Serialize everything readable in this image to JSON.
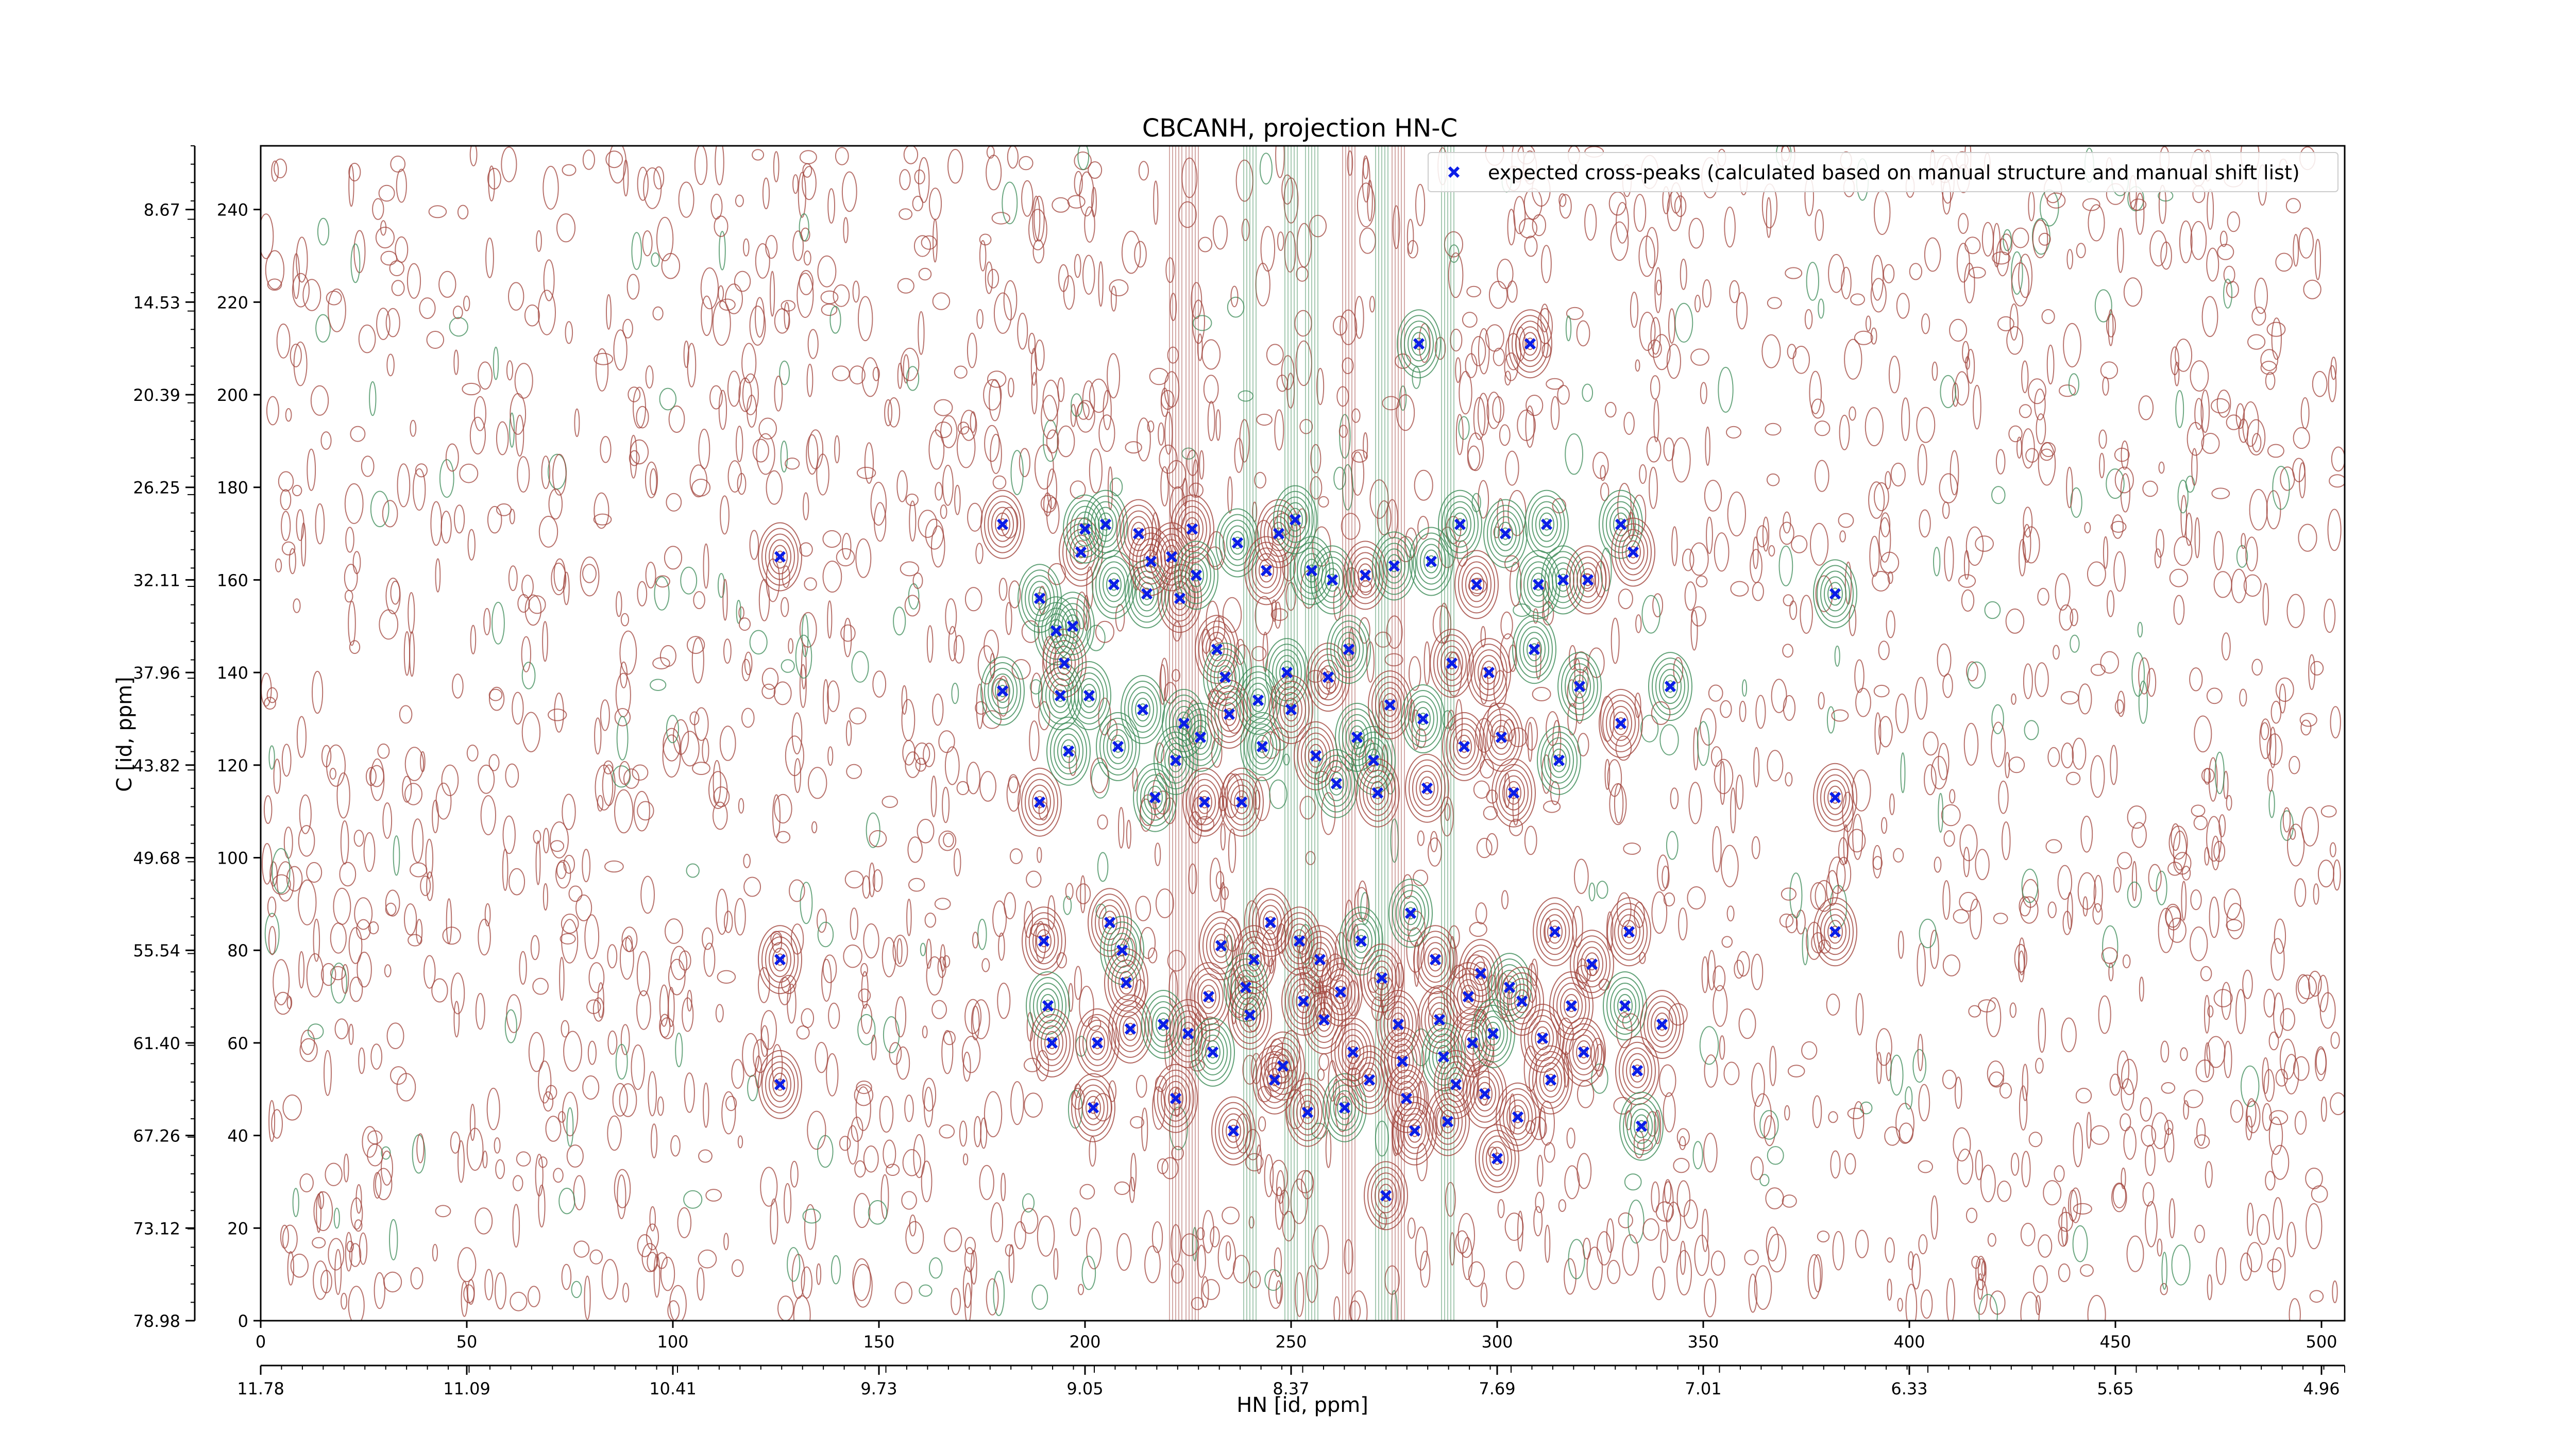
{
  "chart_data": {
    "type": "scatter",
    "title": "CBCANH, projection HN-C",
    "xlabel": "HN [id, ppm]",
    "ylabel": "C [id, ppm]",
    "xlim": [
      0,
      512
    ],
    "ylim": [
      0,
      255
    ],
    "x_ticks": [
      "0",
      "50",
      "100",
      "150",
      "200",
      "250",
      "300",
      "350",
      "400",
      "450",
      "500"
    ],
    "y_ticks": [
      "0",
      "20",
      "40",
      "60",
      "80",
      "100",
      "120",
      "140",
      "160",
      "180",
      "200",
      "220",
      "240"
    ],
    "secondary_x_ticks": [
      "11.78",
      "11.09",
      "10.41",
      "9.73",
      "9.05",
      "8.37",
      "7.69",
      "7.01",
      "6.33",
      "5.65",
      "4.96"
    ],
    "secondary_y_ticks": [
      "78.98",
      "73.12",
      "67.26",
      "61.40",
      "55.54",
      "49.68",
      "43.82",
      "37.96",
      "32.11",
      "26.25",
      "20.39",
      "14.53",
      "8.67"
    ],
    "legend_position": "top-right",
    "grid": false,
    "colors": {
      "positive_contour": "#a0433b",
      "negative_contour": "#3a8a55",
      "marker": "#0a1de8"
    },
    "series": [
      {
        "name": "expected cross-peaks (calculated based on manual structure and manual shift list)",
        "marker": "x",
        "points": [
          [
            126,
            165
          ],
          [
            126,
            78
          ],
          [
            126,
            51
          ],
          [
            180,
            172
          ],
          [
            180,
            136
          ],
          [
            189,
            156
          ],
          [
            189,
            112
          ],
          [
            190,
            82
          ],
          [
            191,
            68
          ],
          [
            192,
            60
          ],
          [
            193,
            149
          ],
          [
            194,
            135
          ],
          [
            195,
            142
          ],
          [
            196,
            123
          ],
          [
            197,
            150
          ],
          [
            199,
            166
          ],
          [
            200,
            171
          ],
          [
            201,
            135
          ],
          [
            202,
            46
          ],
          [
            203,
            60
          ],
          [
            205,
            172
          ],
          [
            206,
            86
          ],
          [
            207,
            159
          ],
          [
            208,
            124
          ],
          [
            209,
            80
          ],
          [
            210,
            73
          ],
          [
            211,
            63
          ],
          [
            213,
            170
          ],
          [
            214,
            132
          ],
          [
            215,
            157
          ],
          [
            216,
            164
          ],
          [
            217,
            113
          ],
          [
            219,
            64
          ],
          [
            221,
            165
          ],
          [
            222,
            48
          ],
          [
            222,
            121
          ],
          [
            223,
            156
          ],
          [
            224,
            129
          ],
          [
            225,
            62
          ],
          [
            226,
            171
          ],
          [
            227,
            161
          ],
          [
            228,
            126
          ],
          [
            229,
            112
          ],
          [
            230,
            70
          ],
          [
            231,
            58
          ],
          [
            232,
            145
          ],
          [
            233,
            81
          ],
          [
            234,
            139
          ],
          [
            235,
            131
          ],
          [
            236,
            41
          ],
          [
            237,
            168
          ],
          [
            238,
            112
          ],
          [
            239,
            72
          ],
          [
            240,
            66
          ],
          [
            241,
            78
          ],
          [
            242,
            134
          ],
          [
            243,
            124
          ],
          [
            244,
            162
          ],
          [
            245,
            86
          ],
          [
            246,
            52
          ],
          [
            247,
            170
          ],
          [
            248,
            55
          ],
          [
            249,
            140
          ],
          [
            250,
            132
          ],
          [
            251,
            173
          ],
          [
            252,
            82
          ],
          [
            253,
            69
          ],
          [
            254,
            45
          ],
          [
            255,
            162
          ],
          [
            256,
            122
          ],
          [
            257,
            78
          ],
          [
            258,
            65
          ],
          [
            259,
            139
          ],
          [
            260,
            160
          ],
          [
            261,
            116
          ],
          [
            262,
            71
          ],
          [
            263,
            46
          ],
          [
            264,
            145
          ],
          [
            265,
            58
          ],
          [
            266,
            126
          ],
          [
            267,
            82
          ],
          [
            268,
            161
          ],
          [
            269,
            52
          ],
          [
            270,
            121
          ],
          [
            271,
            114
          ],
          [
            272,
            74
          ],
          [
            273,
            27
          ],
          [
            274,
            133
          ],
          [
            275,
            163
          ],
          [
            276,
            64
          ],
          [
            277,
            56
          ],
          [
            278,
            48
          ],
          [
            279,
            88
          ],
          [
            280,
            41
          ],
          [
            281,
            211
          ],
          [
            282,
            130
          ],
          [
            283,
            115
          ],
          [
            284,
            164
          ],
          [
            285,
            78
          ],
          [
            286,
            65
          ],
          [
            287,
            57
          ],
          [
            288,
            43
          ],
          [
            289,
            142
          ],
          [
            290,
            51
          ],
          [
            291,
            172
          ],
          [
            292,
            124
          ],
          [
            293,
            70
          ],
          [
            294,
            60
          ],
          [
            295,
            159
          ],
          [
            296,
            75
          ],
          [
            297,
            49
          ],
          [
            298,
            140
          ],
          [
            299,
            62
          ],
          [
            300,
            35
          ],
          [
            301,
            126
          ],
          [
            302,
            170
          ],
          [
            303,
            72
          ],
          [
            304,
            114
          ],
          [
            305,
            44
          ],
          [
            306,
            69
          ],
          [
            308,
            211
          ],
          [
            309,
            145
          ],
          [
            310,
            159
          ],
          [
            311,
            61
          ],
          [
            312,
            172
          ],
          [
            313,
            52
          ],
          [
            314,
            84
          ],
          [
            315,
            121
          ],
          [
            316,
            160
          ],
          [
            318,
            68
          ],
          [
            320,
            137
          ],
          [
            321,
            58
          ],
          [
            322,
            160
          ],
          [
            323,
            77
          ],
          [
            330,
            172
          ],
          [
            330,
            129
          ],
          [
            331,
            68
          ],
          [
            332,
            84
          ],
          [
            333,
            166
          ],
          [
            334,
            54
          ],
          [
            335,
            42
          ],
          [
            340,
            64
          ],
          [
            342,
            137
          ],
          [
            382,
            157
          ],
          [
            382,
            113
          ],
          [
            382,
            84
          ]
        ]
      }
    ]
  }
}
